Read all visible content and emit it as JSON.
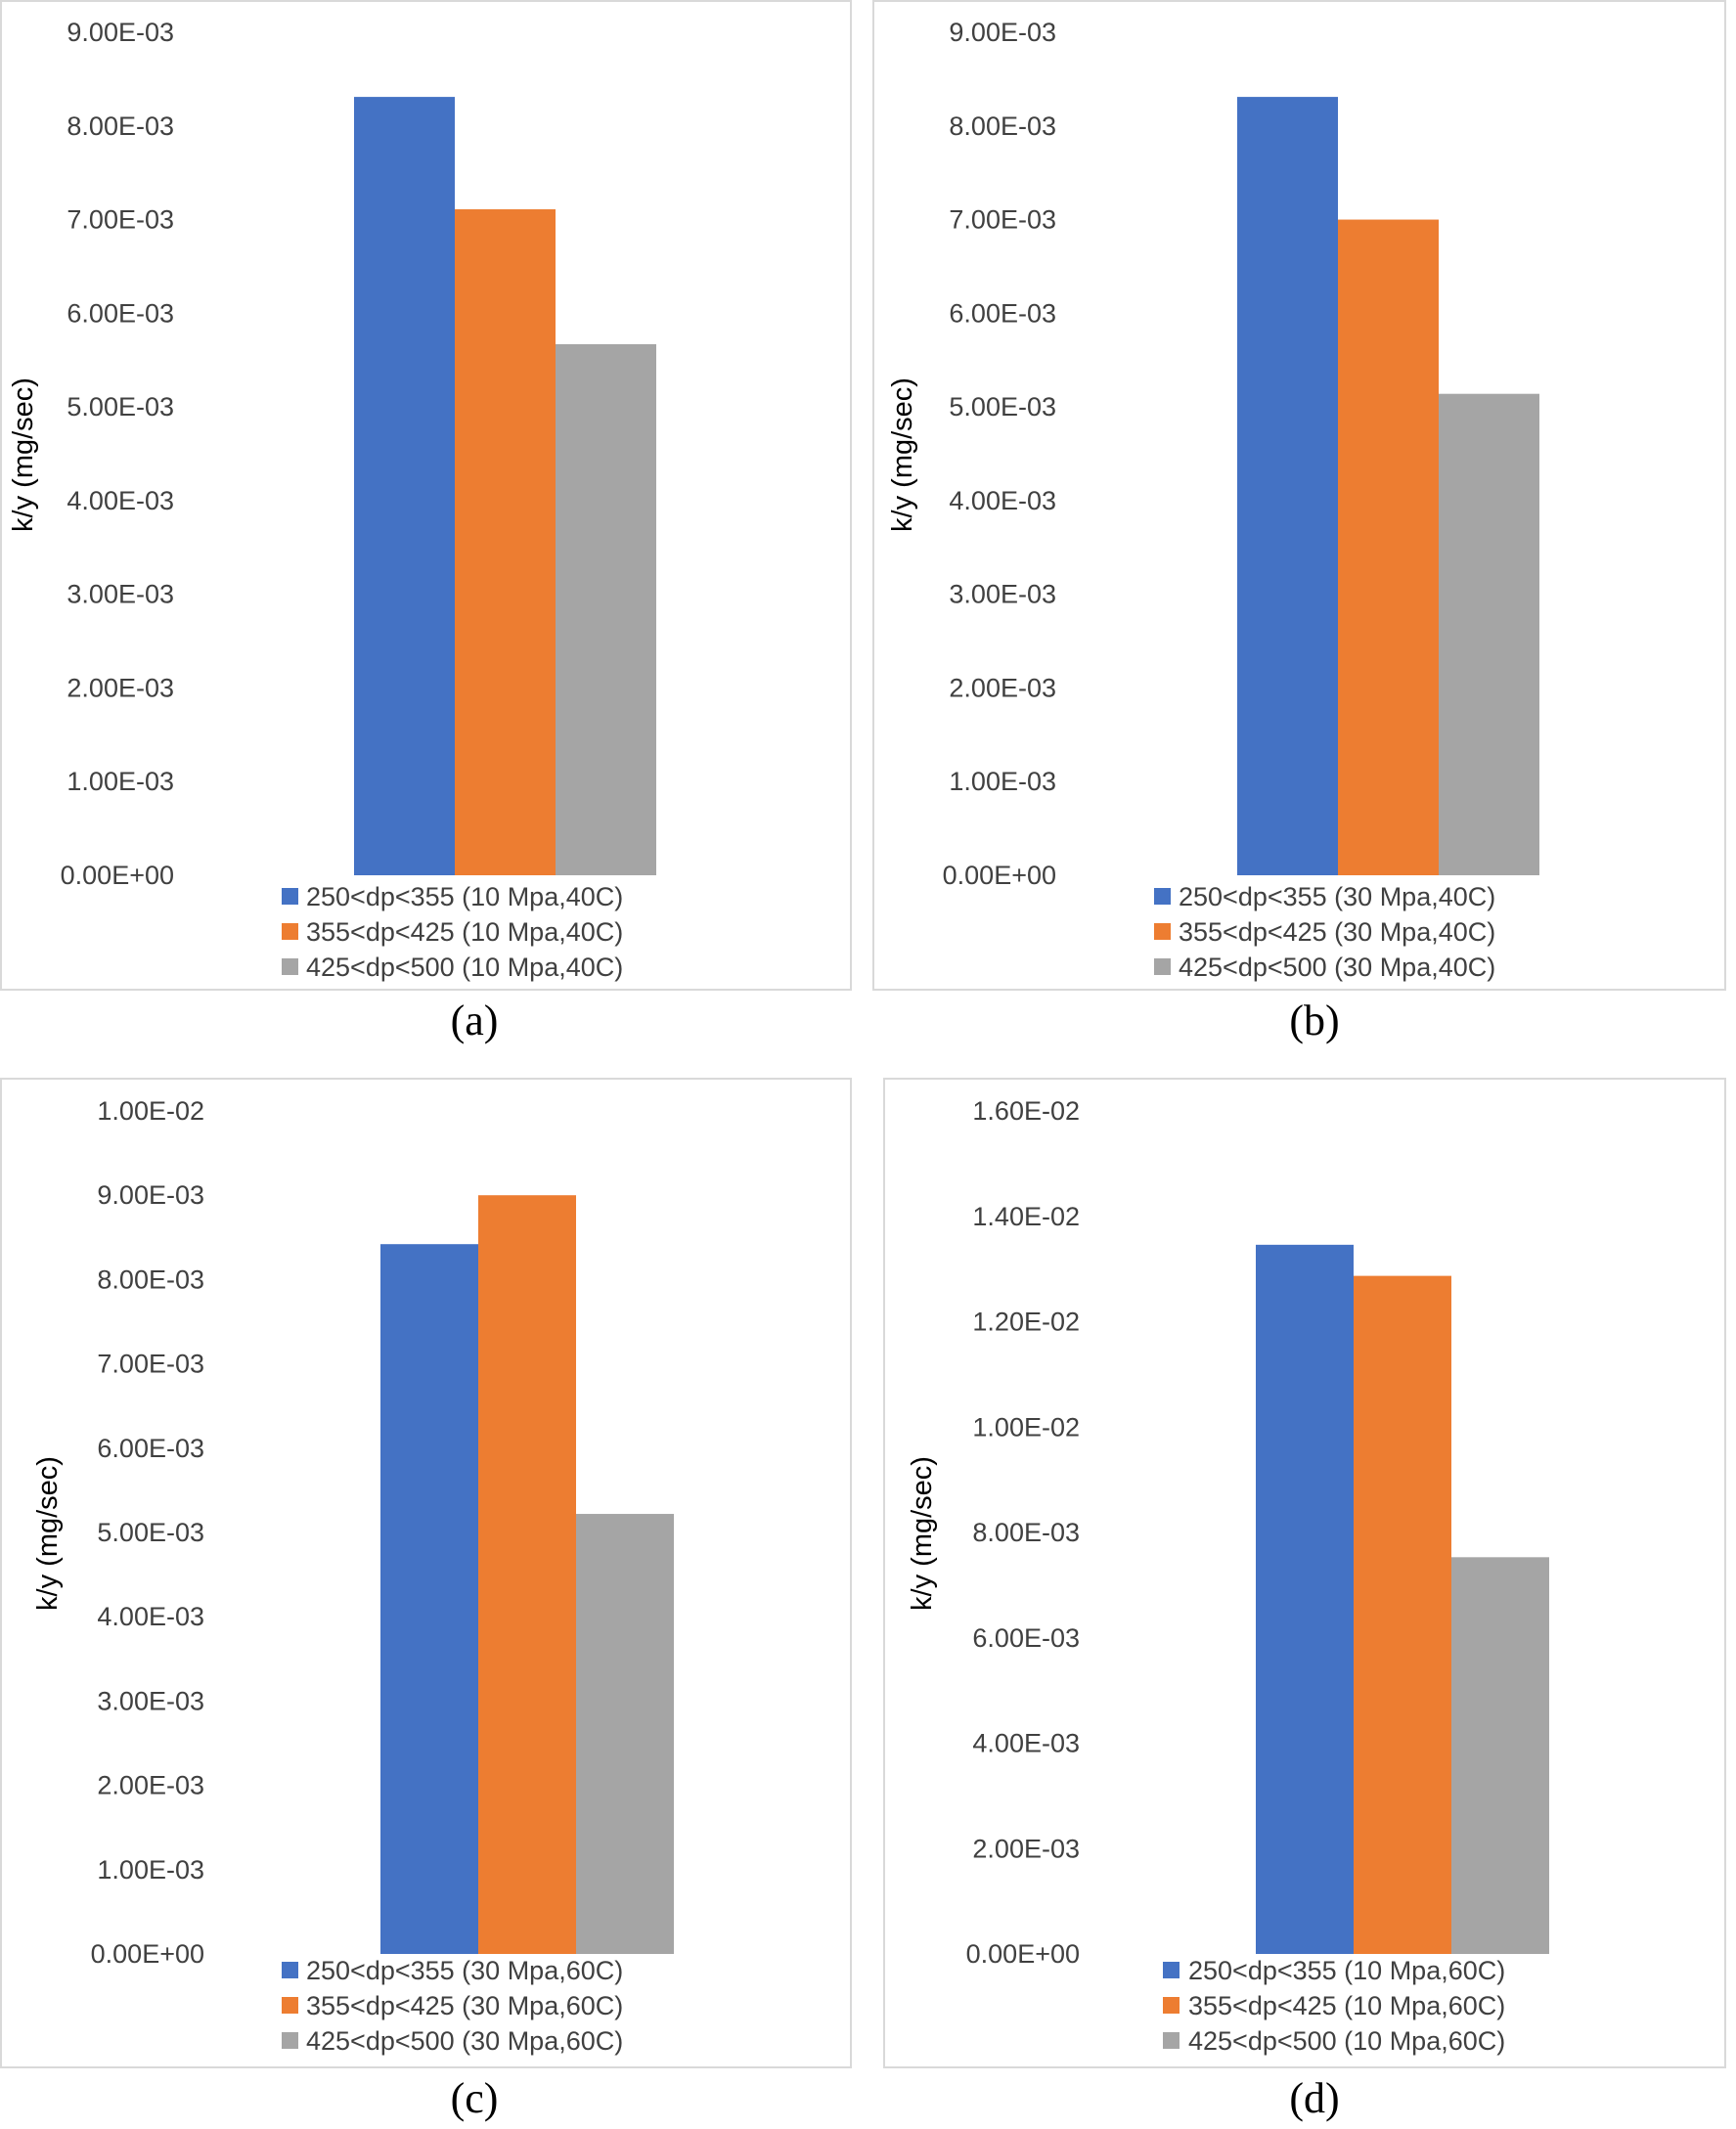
{
  "chart_data": [
    {
      "type": "bar",
      "panel": "(a)",
      "title": "",
      "ylabel": "k/y (mg/sec)",
      "xlabel": "",
      "ylim": [
        0,
        0.009
      ],
      "yticks": [
        "0.00E+00",
        "1.00E-03",
        "2.00E-03",
        "3.00E-03",
        "4.00E-03",
        "5.00E-03",
        "6.00E-03",
        "7.00E-03",
        "8.00E-03",
        "9.00E-03"
      ],
      "series": [
        {
          "name": "250<dp<355 (10 Mpa,40C)",
          "values": [
            0.00831
          ],
          "color": "#4472C4"
        },
        {
          "name": "355<dp<425 (10 Mpa,40C)",
          "values": [
            0.00711
          ],
          "color": "#ED7D31"
        },
        {
          "name": "425<dp<500 (10 Mpa,40C)",
          "values": [
            0.00567
          ],
          "color": "#A5A5A5"
        }
      ],
      "legend_position": "bottom"
    },
    {
      "type": "bar",
      "panel": "(b)",
      "title": "",
      "ylabel": "k/y (mg/sec)",
      "xlabel": "",
      "ylim": [
        0,
        0.009
      ],
      "yticks": [
        "0.00E+00",
        "1.00E-03",
        "2.00E-03",
        "3.00E-03",
        "4.00E-03",
        "5.00E-03",
        "6.00E-03",
        "7.00E-03",
        "8.00E-03",
        "9.00E-03"
      ],
      "series": [
        {
          "name": "250<dp<355 (30 Mpa,40C)",
          "values": [
            0.00831
          ],
          "color": "#4472C4"
        },
        {
          "name": "355<dp<425 (30 Mpa,40C)",
          "values": [
            0.007
          ],
          "color": "#ED7D31"
        },
        {
          "name": "425<dp<500 (30 Mpa,40C)",
          "values": [
            0.00514
          ],
          "color": "#A5A5A5"
        }
      ],
      "legend_position": "bottom"
    },
    {
      "type": "bar",
      "panel": "(c)",
      "title": "",
      "ylabel": "k/y (mg/sec)",
      "xlabel": "",
      "ylim": [
        0,
        0.01
      ],
      "yticks": [
        "0.00E+00",
        "1.00E-03",
        "2.00E-03",
        "3.00E-03",
        "4.00E-03",
        "5.00E-03",
        "6.00E-03",
        "7.00E-03",
        "8.00E-03",
        "9.00E-03",
        "1.00E-02"
      ],
      "series": [
        {
          "name": "250<dp<355 (30 Mpa,60C)",
          "values": [
            0.00842
          ],
          "color": "#4472C4"
        },
        {
          "name": "355<dp<425 (30 Mpa,60C)",
          "values": [
            0.009
          ],
          "color": "#ED7D31"
        },
        {
          "name": "425<dp<500 (30 Mpa,60C)",
          "values": [
            0.00522
          ],
          "color": "#A5A5A5"
        }
      ],
      "legend_position": "bottom"
    },
    {
      "type": "bar",
      "panel": "(d)",
      "title": "",
      "ylabel": "k/y (mg/sec)",
      "xlabel": "",
      "ylim": [
        0,
        0.016
      ],
      "yticks": [
        "0.00E+00",
        "2.00E-03",
        "4.00E-03",
        "6.00E-03",
        "8.00E-03",
        "1.00E-02",
        "1.20E-02",
        "1.40E-02",
        "1.60E-02"
      ],
      "series": [
        {
          "name": "250<dp<355 (10 Mpa,60C)",
          "values": [
            0.01346
          ],
          "color": "#4472C4"
        },
        {
          "name": "355<dp<425 (10 Mpa,60C)",
          "values": [
            0.01287
          ],
          "color": "#ED7D31"
        },
        {
          "name": "425<dp<500 (10 Mpa,60C)",
          "values": [
            0.00753
          ],
          "color": "#A5A5A5"
        }
      ],
      "legend_position": "bottom"
    }
  ]
}
